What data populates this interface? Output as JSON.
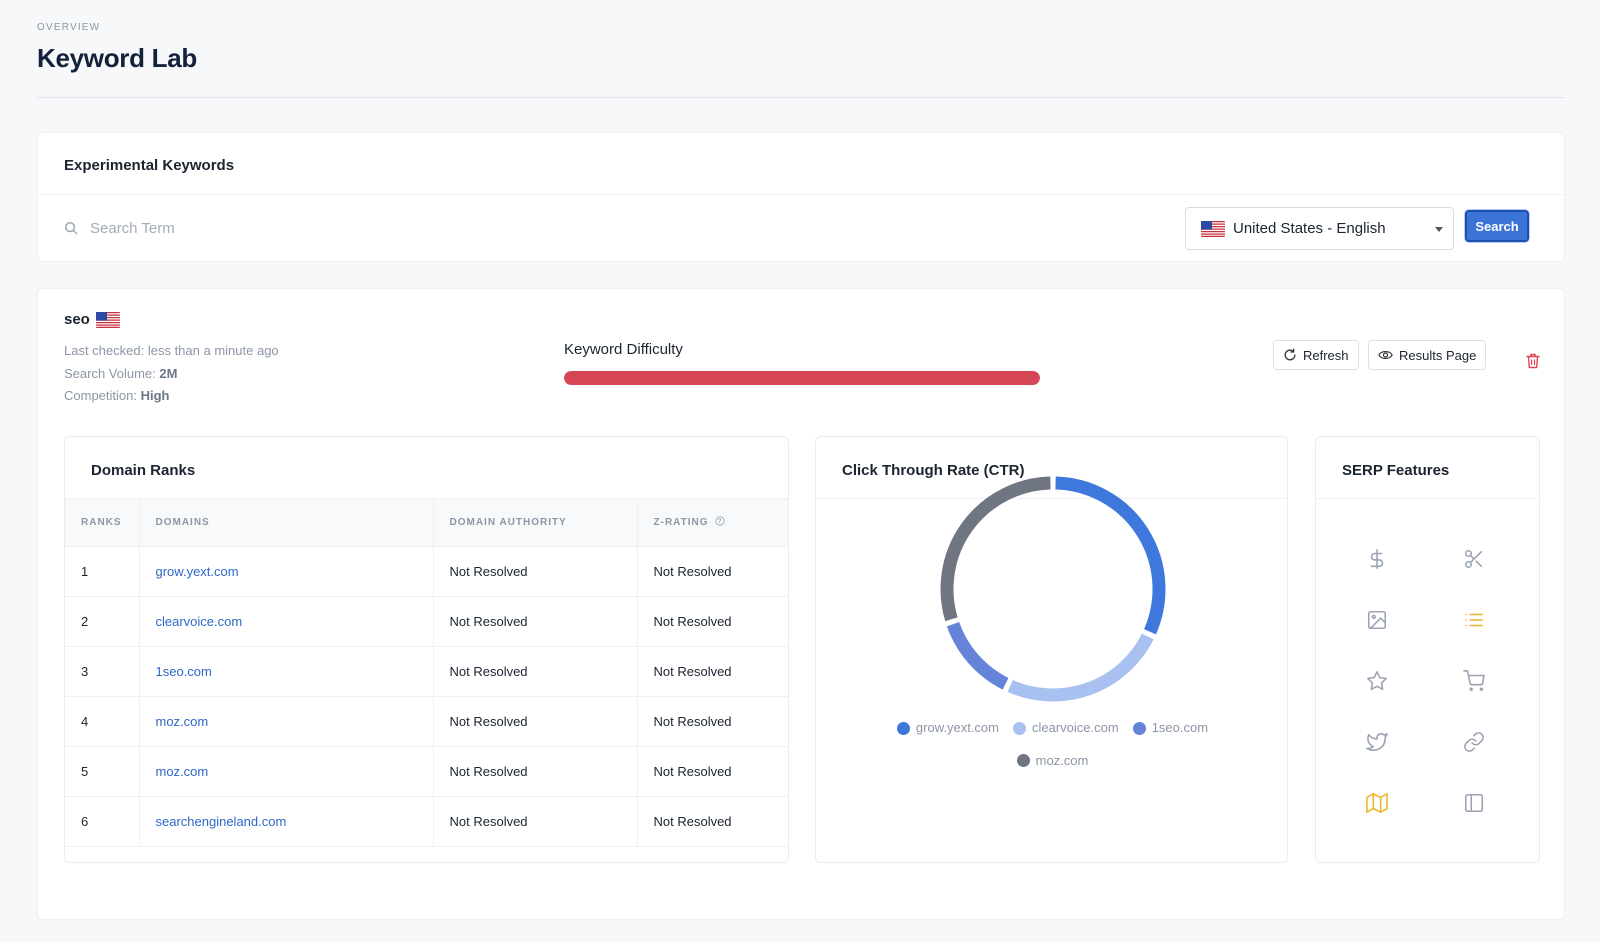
{
  "header": {
    "eyebrow": "OVERVIEW",
    "title": "Keyword Lab"
  },
  "search_card": {
    "title": "Experimental Keywords",
    "placeholder": "Search Term",
    "value": "",
    "locale": "United States - English",
    "search_label": "Search"
  },
  "result": {
    "keyword": "seo",
    "last_checked_label": "Last checked:",
    "last_checked_value": "less than a minute ago",
    "volume_label": "Search Volume:",
    "volume_value": "2M",
    "competition_label": "Competition:",
    "competition_value": "High",
    "kd_label": "Keyword Difficulty",
    "kd_value_percent": 100,
    "kd_color": "#d64556",
    "refresh_label": "Refresh",
    "results_page_label": "Results Page"
  },
  "ranks": {
    "title": "Domain Ranks",
    "columns": [
      "RANKS",
      "DOMAINS",
      "DOMAIN AUTHORITY",
      "Z-RATING"
    ],
    "rows": [
      {
        "rank": "1",
        "domain": "grow.yext.com",
        "da": "Not Resolved",
        "z": "Not Resolved"
      },
      {
        "rank": "2",
        "domain": "clearvoice.com",
        "da": "Not Resolved",
        "z": "Not Resolved"
      },
      {
        "rank": "3",
        "domain": "1seo.com",
        "da": "Not Resolved",
        "z": "Not Resolved"
      },
      {
        "rank": "4",
        "domain": "moz.com",
        "da": "Not Resolved",
        "z": "Not Resolved"
      },
      {
        "rank": "5",
        "domain": "moz.com",
        "da": "Not Resolved",
        "z": "Not Resolved"
      },
      {
        "rank": "6",
        "domain": "searchengineland.com",
        "da": "Not Resolved",
        "z": "Not Resolved"
      }
    ]
  },
  "ctr": {
    "title": "Click Through Rate (CTR)"
  },
  "chart_data": {
    "type": "pie",
    "title": "Click Through Rate (CTR)",
    "categories": [
      "grow.yext.com",
      "clearvoice.com",
      "1seo.com",
      "moz.com"
    ],
    "values": [
      32,
      25,
      13,
      30
    ],
    "colors": [
      "#3f78dc",
      "#a9c1f0",
      "#6583d9",
      "#6f7682"
    ],
    "legend": "bottom"
  },
  "serp": {
    "title": "SERP Features",
    "icons": [
      {
        "name": "dollar-icon",
        "color": "#9aa3b1"
      },
      {
        "name": "scissors-icon",
        "color": "#9aa3b1"
      },
      {
        "name": "image-icon",
        "color": "#9aa3b1"
      },
      {
        "name": "list-icon",
        "color": "#f0b429"
      },
      {
        "name": "star-icon",
        "color": "#9aa3b1"
      },
      {
        "name": "shopping-cart-icon",
        "color": "#9aa3b1"
      },
      {
        "name": "twitter-icon",
        "color": "#9aa3b1"
      },
      {
        "name": "link-icon",
        "color": "#9aa3b1"
      },
      {
        "name": "map-icon",
        "color": "#f0b429"
      },
      {
        "name": "sidebar-panel-icon",
        "color": "#9aa3b1"
      }
    ]
  }
}
